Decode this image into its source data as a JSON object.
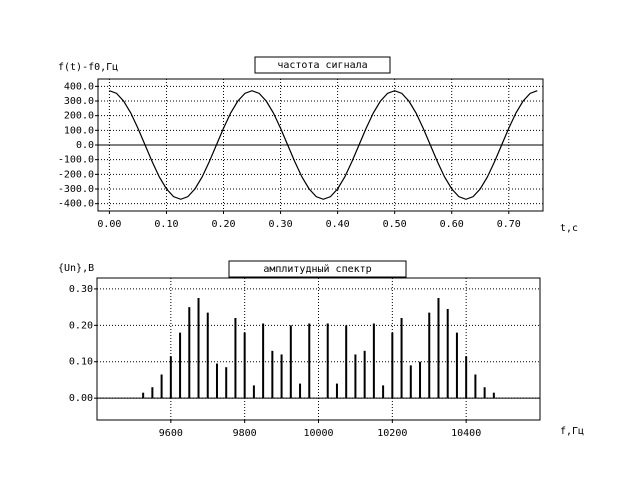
{
  "chart_data": [
    {
      "type": "line",
      "title": "частота сигнала",
      "ylabel": "f(t)-f0,Гц",
      "xlabel": "t,c",
      "x": [
        0,
        0.0125,
        0.025,
        0.0375,
        0.05,
        0.0625,
        0.075,
        0.0875,
        0.1,
        0.1125,
        0.125,
        0.1375,
        0.15,
        0.1625,
        0.175,
        0.1875,
        0.2,
        0.2125,
        0.225,
        0.2375,
        0.25,
        0.2625,
        0.275,
        0.2875,
        0.3,
        0.3125,
        0.325,
        0.3375,
        0.35,
        0.3625,
        0.375,
        0.3875,
        0.4,
        0.4125,
        0.425,
        0.4375,
        0.45,
        0.4625,
        0.475,
        0.4875,
        0.5,
        0.5125,
        0.525,
        0.5375,
        0.55,
        0.5625,
        0.575,
        0.5875,
        0.6,
        0.6125,
        0.625,
        0.6375,
        0.65,
        0.6625,
        0.675,
        0.6875,
        0.7,
        0.7125,
        0.725,
        0.7375,
        0.75
      ],
      "values": [
        370,
        352,
        299,
        218,
        114,
        0,
        -114,
        -218,
        -299,
        -352,
        -370,
        -352,
        -299,
        -218,
        -114,
        0,
        114,
        218,
        299,
        352,
        370,
        352,
        299,
        218,
        114,
        0,
        -114,
        -218,
        -299,
        -352,
        -370,
        -352,
        -299,
        -218,
        -114,
        0,
        114,
        218,
        299,
        352,
        370,
        352,
        299,
        218,
        114,
        0,
        -114,
        -218,
        -299,
        -352,
        -370,
        -352,
        -299,
        -218,
        -114,
        0,
        114,
        218,
        299,
        352,
        370
      ],
      "color": "#000000",
      "xlim": [
        -0.02,
        0.76
      ],
      "xticks": [
        {
          "value": 0,
          "label": "0.00"
        },
        {
          "value": 0.1,
          "label": "0.10"
        },
        {
          "value": 0.2,
          "label": "0.20"
        },
        {
          "value": 0.3,
          "label": "0.30"
        },
        {
          "value": 0.4,
          "label": "0.40"
        },
        {
          "value": 0.5,
          "label": "0.50"
        },
        {
          "value": 0.6,
          "label": "0.60"
        },
        {
          "value": 0.7,
          "label": "0.70"
        }
      ],
      "ylim": [
        -450,
        450
      ],
      "yticks": [
        {
          "value": 400,
          "label": "400.0"
        },
        {
          "value": 300,
          "label": "300.0"
        },
        {
          "value": 200,
          "label": "200.0"
        },
        {
          "value": 100,
          "label": "100.0"
        },
        {
          "value": 0,
          "label": "0.0"
        },
        {
          "value": -100,
          "label": "-100.0"
        },
        {
          "value": -200,
          "label": "-200.0"
        },
        {
          "value": -300,
          "label": "-300.0"
        },
        {
          "value": -400,
          "label": "-400.0"
        }
      ],
      "grid": true
    },
    {
      "type": "stem",
      "title": "амплитудный спектр",
      "ylabel": "{Un},B",
      "xlabel": "f,Гц",
      "x": [
        9525,
        9550,
        9575,
        9600,
        9625,
        9650,
        9675,
        9700,
        9725,
        9750,
        9775,
        9800,
        9825,
        9850,
        9875,
        9900,
        9925,
        9950,
        9975,
        10025,
        10050,
        10075,
        10100,
        10125,
        10150,
        10175,
        10200,
        10225,
        10250,
        10275,
        10300,
        10325,
        10350,
        10375,
        10400,
        10425,
        10450,
        10475
      ],
      "values": [
        0.015,
        0.03,
        0.065,
        0.115,
        0.18,
        0.25,
        0.275,
        0.235,
        0.095,
        0.085,
        0.22,
        0.18,
        0.035,
        0.205,
        0.13,
        0.12,
        0.2,
        0.04,
        0.205,
        0.205,
        0.04,
        0.2,
        0.12,
        0.13,
        0.205,
        0.035,
        0.18,
        0.22,
        0.09,
        0.1,
        0.235,
        0.275,
        0.245,
        0.18,
        0.115,
        0.065,
        0.03,
        0.015
      ],
      "color": "#000000",
      "xlim": [
        9400,
        10600
      ],
      "xticks": [
        9600,
        9800,
        10000,
        10200,
        10400
      ],
      "ylim": [
        -0.06,
        0.33
      ],
      "yticks": [
        {
          "value": 0.3,
          "label": "0.30"
        },
        {
          "value": 0.2,
          "label": "0.20"
        },
        {
          "value": 0.1,
          "label": "0.10"
        },
        {
          "value": 0,
          "label": "0.00"
        }
      ],
      "grid": true
    }
  ]
}
